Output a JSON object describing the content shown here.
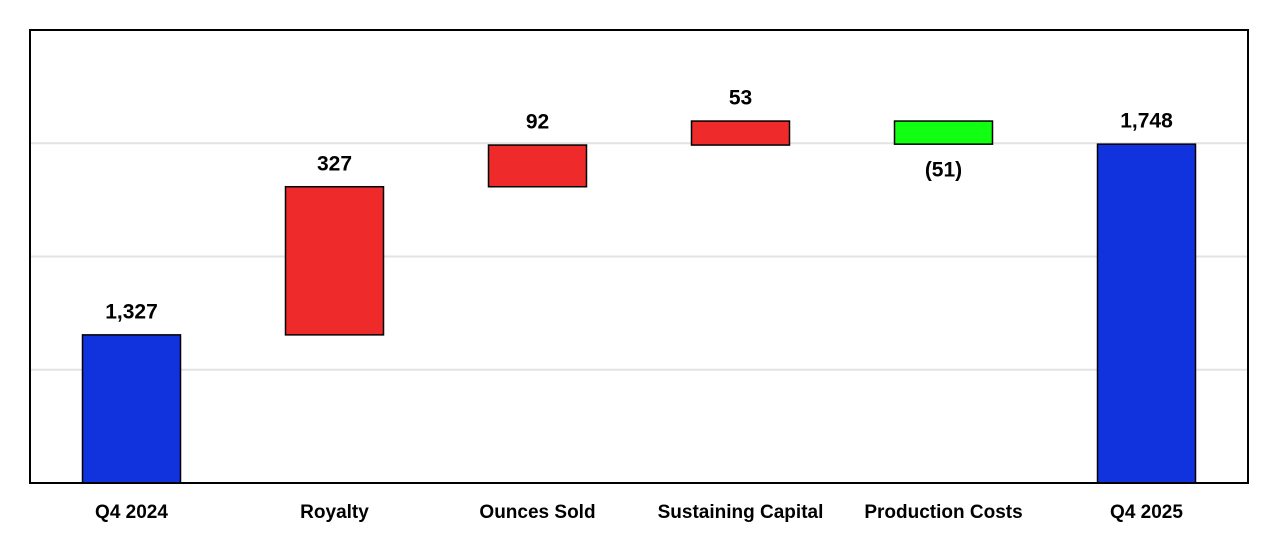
{
  "chart_data": {
    "type": "waterfall",
    "categories": [
      "Q4 2024",
      "Royalty",
      "Ounces Sold",
      "Sustaining Capital",
      "Production Costs",
      "Q4 2025"
    ],
    "values": [
      1327,
      327,
      92,
      53,
      -51,
      1748
    ],
    "value_labels": [
      "1,327",
      "327",
      "92",
      "53",
      "(51)",
      "1,748"
    ],
    "measure": [
      "absolute",
      "relative",
      "relative",
      "relative",
      "relative",
      "absolute"
    ],
    "colors": {
      "total": "#1133dd",
      "increase": "#ee2a2a",
      "decrease": "#11ff11"
    },
    "ylim": [
      1000,
      2000
    ],
    "yticks": [
      1250,
      1500,
      1750
    ],
    "grid": true
  }
}
